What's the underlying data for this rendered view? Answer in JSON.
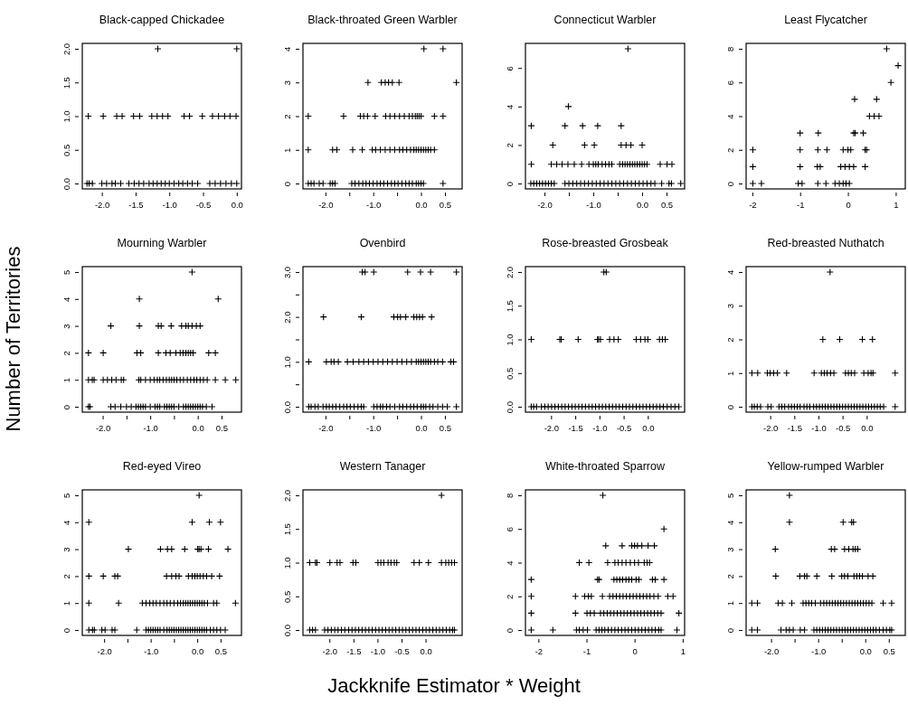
{
  "chart_data": [
    {
      "type": "scatter",
      "title": "Black-capped Chickadee",
      "marker": "cross",
      "color": "#000000",
      "xlim": [
        -2.29,
        0.07
      ],
      "ylim": [
        -0.08,
        2.08
      ],
      "xticks": [
        {
          "value": -2,
          "label": "-2.0"
        },
        {
          "value": -1.5,
          "label": "-1.5"
        },
        {
          "value": -1,
          "label": "-1.0"
        },
        {
          "value": -0.5,
          "label": "-0.5"
        },
        {
          "value": 0,
          "label": "0.0"
        }
      ],
      "yticks": [
        {
          "value": 0,
          "label": "0.0"
        },
        {
          "value": 0.5,
          "label": "0.5"
        },
        {
          "value": 1,
          "label": "1.0"
        },
        {
          "value": 1.5,
          "label": "1.5"
        },
        {
          "value": 2,
          "label": "2.0"
        }
      ],
      "x": [
        -1.17,
        0.0,
        -2.2,
        -1.98,
        -1.78,
        -1.7,
        -1.53,
        -1.44,
        -1.26,
        -1.18,
        -1.1,
        -1.02,
        -0.78,
        -0.7,
        -0.51,
        -0.36,
        -0.27,
        -0.18,
        -0.1,
        -0.01,
        -2.22,
        -2.19,
        -2.14,
        -2.0,
        -1.93,
        -1.85,
        -1.8,
        -1.72,
        -1.6,
        -1.52,
        -1.45,
        -1.38,
        -1.3,
        -1.24,
        -1.18,
        -1.12,
        -1.06,
        -1.0,
        -0.93,
        -0.86,
        -0.8,
        -0.73,
        -0.66,
        -0.58,
        -0.4,
        -0.32,
        -0.24,
        -0.16,
        -0.08,
        0.0
      ],
      "values": [
        2,
        2,
        1,
        1,
        1,
        1,
        1,
        1,
        1,
        1,
        1,
        1,
        1,
        1,
        1,
        1,
        1,
        1,
        1,
        1,
        0,
        0,
        0,
        0,
        0,
        0,
        0,
        0,
        0,
        0,
        0,
        0,
        0,
        0,
        0,
        0,
        0,
        0,
        0,
        0,
        0,
        0,
        0,
        0,
        0,
        0,
        0,
        0,
        0,
        0
      ]
    },
    {
      "type": "scatter",
      "title": "Black-throated Green Warbler",
      "marker": "cross",
      "color": "#000000",
      "xlim": [
        -2.47,
        0.86
      ],
      "ylim": [
        -0.16,
        4.16
      ],
      "xticks": [
        {
          "value": -2,
          "label": "-2.0"
        },
        {
          "value": -1.5,
          "label": null
        },
        {
          "value": -1,
          "label": "-1.0"
        },
        {
          "value": -0.5,
          "label": null
        },
        {
          "value": 0,
          "label": "0.0"
        },
        {
          "value": 0.5,
          "label": "0.5"
        }
      ],
      "yticks": [
        0,
        1,
        2,
        3,
        4
      ],
      "x": [
        0.06,
        0.46,
        -1.11,
        -0.83,
        -0.75,
        -0.68,
        -0.6,
        -0.46,
        0.74,
        -2.36,
        -1.62,
        -1.27,
        -1.2,
        -1.12,
        -0.96,
        -0.74,
        -0.65,
        -0.55,
        -0.45,
        -0.35,
        -0.25,
        -0.18,
        -0.12,
        -0.08,
        -0.04,
        0.0,
        0.28,
        0.46,
        -2.36,
        -1.85,
        -1.76,
        -1.43,
        -1.23,
        -1.02,
        -0.95,
        -0.85,
        -0.75,
        -0.65,
        -0.55,
        -0.45,
        -0.38,
        -0.3,
        -0.22,
        -0.15,
        -0.1,
        -0.05,
        0.0,
        0.05,
        0.1,
        0.15,
        0.2,
        0.28,
        -2.36,
        -2.3,
        -2.24,
        -2.13,
        -2.05,
        -1.9,
        -1.85,
        -1.8,
        -1.45,
        -1.38,
        -1.3,
        -1.22,
        -1.15,
        -1.08,
        -1.0,
        -0.92,
        -0.85,
        -0.78,
        -0.7,
        -0.62,
        -0.55,
        -0.48,
        -0.4,
        -0.32,
        -0.25,
        -0.18,
        -0.1,
        -0.05,
        0.0,
        0.05,
        0.46
      ],
      "values": [
        4,
        4,
        3,
        3,
        3,
        3,
        3,
        3,
        3,
        2,
        2,
        2,
        2,
        2,
        2,
        2,
        2,
        2,
        2,
        2,
        2,
        2,
        2,
        2,
        2,
        2,
        2,
        2,
        1,
        1,
        1,
        1,
        1,
        1,
        1,
        1,
        1,
        1,
        1,
        1,
        1,
        1,
        1,
        1,
        1,
        1,
        1,
        1,
        1,
        1,
        1,
        1,
        0,
        0,
        0,
        0,
        0,
        0,
        0,
        0,
        0,
        0,
        0,
        0,
        0,
        0,
        0,
        0,
        0,
        0,
        0,
        0,
        0,
        0,
        0,
        0,
        0,
        0,
        0,
        0,
        0,
        0,
        0
      ]
    },
    {
      "type": "scatter",
      "title": "Connecticut Warbler",
      "marker": "cross",
      "color": "#000000",
      "xlim": [
        -2.39,
        0.87
      ],
      "ylim": [
        -0.28,
        7.28
      ],
      "xticks": [
        {
          "value": -2,
          "label": "-2.0"
        },
        {
          "value": -1.5,
          "label": null
        },
        {
          "value": -1,
          "label": "-1.0"
        },
        {
          "value": -0.5,
          "label": null
        },
        {
          "value": 0,
          "label": "0.0"
        },
        {
          "value": 0.5,
          "label": "0.5"
        }
      ],
      "yticks": [
        0,
        2,
        4,
        6
      ],
      "x": [
        -0.29,
        -1.51,
        -2.27,
        -1.58,
        -1.22,
        -0.91,
        -0.43,
        -1.83,
        -1.18,
        -0.98,
        -0.43,
        -0.33,
        -0.23,
        0.0,
        -2.27,
        -1.86,
        -1.75,
        -1.64,
        -1.52,
        -1.39,
        -1.24,
        -1.09,
        -1.0,
        -0.95,
        -0.9,
        -0.82,
        -0.75,
        -0.68,
        -0.62,
        -0.46,
        -0.4,
        -0.35,
        -0.3,
        -0.25,
        -0.2,
        -0.15,
        -0.1,
        -0.05,
        0.0,
        0.05,
        0.1,
        0.37,
        0.51,
        0.61,
        -2.28,
        -2.22,
        -2.16,
        -2.1,
        -2.04,
        -1.98,
        -1.92,
        -1.86,
        -1.8,
        -1.58,
        -1.5,
        -1.42,
        -1.34,
        -1.26,
        -1.18,
        -1.1,
        -1.02,
        -0.94,
        -0.86,
        -0.78,
        -0.7,
        -0.62,
        -0.54,
        -0.46,
        -0.38,
        -0.3,
        -0.22,
        -0.14,
        -0.06,
        0.02,
        0.1,
        0.18,
        0.26,
        0.4,
        0.55,
        0.6,
        0.79
      ],
      "values": [
        7,
        4,
        3,
        3,
        3,
        3,
        3,
        2,
        2,
        2,
        2,
        2,
        2,
        2,
        1,
        1,
        1,
        1,
        1,
        1,
        1,
        1,
        1,
        1,
        1,
        1,
        1,
        1,
        1,
        1,
        1,
        1,
        1,
        1,
        1,
        1,
        1,
        1,
        1,
        1,
        1,
        1,
        1,
        1,
        0,
        0,
        0,
        0,
        0,
        0,
        0,
        0,
        0,
        0,
        0,
        0,
        0,
        0,
        0,
        0,
        0,
        0,
        0,
        0,
        0,
        0,
        0,
        0,
        0,
        0,
        0,
        0,
        0,
        0,
        0,
        0,
        0,
        0,
        0,
        0,
        0
      ]
    },
    {
      "type": "scatter",
      "title": "Least Flycatcher",
      "marker": "cross",
      "color": "#000000",
      "xlim": [
        -2.13,
        1.2
      ],
      "ylim": [
        -0.32,
        8.32
      ],
      "xticks": [
        -2,
        -1,
        0,
        1
      ],
      "yticks": [
        0,
        2,
        4,
        6,
        8
      ],
      "x": [
        0.81,
        1.05,
        0.9,
        0.14,
        0.6,
        0.45,
        0.55,
        0.65,
        -1.0,
        -0.62,
        0.12,
        0.15,
        0.32,
        -1.99,
        -1.0,
        -0.63,
        -0.44,
        -0.1,
        0.0,
        0.06,
        0.36,
        0.39,
        -1.99,
        -1.0,
        -0.64,
        -0.58,
        -0.15,
        -0.06,
        0.03,
        0.12,
        0.36,
        -1.99,
        -1.81,
        -1.04,
        -0.96,
        -0.63,
        -0.46,
        -0.27,
        -0.18,
        -0.1,
        -0.04,
        0.03
      ],
      "values": [
        8,
        7,
        6,
        5,
        5,
        4,
        4,
        4,
        3,
        3,
        3,
        3,
        3,
        2,
        2,
        2,
        2,
        2,
        2,
        2,
        2,
        2,
        1,
        1,
        1,
        1,
        1,
        1,
        1,
        1,
        1,
        0,
        0,
        0,
        0,
        0,
        0,
        0,
        0,
        0,
        0,
        0
      ]
    },
    {
      "type": "scatter",
      "title": "Mourning Warbler",
      "ylabel": "Number of Territories",
      "marker": "cross",
      "color": "#000000",
      "xlim": [
        -2.43,
        0.92
      ],
      "ylim": [
        -0.2,
        5.2
      ],
      "xticks": [
        {
          "value": -2,
          "label": "-2.0"
        },
        {
          "value": -1.5,
          "label": null
        },
        {
          "value": -1,
          "label": "-1.0"
        },
        {
          "value": -0.5,
          "label": null
        },
        {
          "value": 0,
          "label": "0.0"
        },
        {
          "value": 0.5,
          "label": "0.5"
        }
      ],
      "yticks": [
        0,
        1,
        2,
        3,
        4,
        5
      ],
      "x": [
        -0.12,
        -1.23,
        0.43,
        -1.83,
        -1.23,
        -0.83,
        -0.77,
        -0.56,
        -0.34,
        -0.25,
        -0.2,
        -0.12,
        -0.03,
        0.05,
        -2.3,
        -1.99,
        -1.28,
        -1.2,
        -0.83,
        -0.67,
        -0.58,
        -0.46,
        -0.37,
        -0.31,
        -0.25,
        -0.2,
        -0.15,
        -0.1,
        0.23,
        0.37,
        -2.3,
        -2.22,
        -2.18,
        -1.99,
        -1.9,
        -1.81,
        -1.72,
        -1.61,
        -1.56,
        -1.24,
        -1.2,
        -1.1,
        -1.0,
        -0.92,
        -0.85,
        -0.8,
        -0.73,
        -0.66,
        -0.6,
        -0.55,
        -0.5,
        -0.44,
        -0.37,
        -0.3,
        -0.22,
        -0.15,
        -0.08,
        -0.02,
        0.05,
        0.12,
        0.2,
        0.37,
        0.58,
        0.8,
        -2.3,
        -2.27,
        -1.83,
        -1.74,
        -1.62,
        -1.5,
        -1.4,
        -1.3,
        -1.25,
        -1.2,
        -1.15,
        -1.1,
        -1.0,
        -0.9,
        -0.85,
        -0.8,
        -0.7,
        -0.65,
        -0.6,
        -0.55,
        -0.5,
        -0.4,
        -0.3,
        -0.25,
        -0.2,
        -0.15,
        -0.1,
        -0.05,
        0.0,
        0.05,
        0.1,
        0.18,
        0.3
      ],
      "values": [
        5,
        4,
        4,
        3,
        3,
        3,
        3,
        3,
        3,
        3,
        3,
        3,
        3,
        3,
        2,
        2,
        2,
        2,
        2,
        2,
        2,
        2,
        2,
        2,
        2,
        2,
        2,
        2,
        2,
        2,
        1,
        1,
        1,
        1,
        1,
        1,
        1,
        1,
        1,
        1,
        1,
        1,
        1,
        1,
        1,
        1,
        1,
        1,
        1,
        1,
        1,
        1,
        1,
        1,
        1,
        1,
        1,
        1,
        1,
        1,
        1,
        1,
        1,
        1,
        0,
        0,
        0,
        0,
        0,
        0,
        0,
        0,
        0,
        0,
        0,
        0,
        0,
        0,
        0,
        0,
        0,
        0,
        0,
        0,
        0,
        0,
        0,
        0,
        0,
        0,
        0,
        0,
        0,
        0,
        0,
        0,
        0
      ]
    },
    {
      "type": "scatter",
      "title": "Ovenbird",
      "marker": "cross",
      "color": "#000000",
      "xlim": [
        -2.47,
        0.86
      ],
      "ylim": [
        -0.12,
        3.12
      ],
      "xticks": [
        {
          "value": -2,
          "label": "-2.0"
        },
        {
          "value": -1.5,
          "label": null
        },
        {
          "value": -1,
          "label": "-1.0"
        },
        {
          "value": -0.5,
          "label": null
        },
        {
          "value": 0,
          "label": "0.0"
        },
        {
          "value": 0.5,
          "label": "0.5"
        }
      ],
      "yticks": [
        {
          "value": 0,
          "label": "0.0"
        },
        {
          "value": 0.5,
          "label": null
        },
        {
          "value": 1,
          "label": "1.0"
        },
        {
          "value": 1.5,
          "label": null
        },
        {
          "value": 2,
          "label": "2.0"
        },
        {
          "value": 2.5,
          "label": null
        },
        {
          "value": 3,
          "label": "3.0"
        }
      ],
      "x": [
        -1.23,
        -1.17,
        -0.99,
        -0.28,
        -0.01,
        0.2,
        0.74,
        -2.04,
        -1.25,
        -0.57,
        -0.49,
        -0.43,
        -0.32,
        -0.15,
        -0.09,
        -0.03,
        0.03,
        0.22,
        -2.35,
        -1.98,
        -1.88,
        -1.82,
        -1.73,
        -1.54,
        -1.42,
        -1.3,
        -1.2,
        -1.1,
        -1.0,
        -0.9,
        -0.8,
        -0.7,
        -0.6,
        -0.5,
        -0.4,
        -0.3,
        -0.2,
        -0.1,
        -0.05,
        0.0,
        0.05,
        0.1,
        0.15,
        0.2,
        0.28,
        0.35,
        0.45,
        0.62,
        0.68,
        -2.35,
        -2.3,
        -2.22,
        -2.15,
        -2.05,
        -1.98,
        -1.92,
        -1.85,
        -1.78,
        -1.7,
        -1.62,
        -1.55,
        -1.48,
        -1.4,
        -1.32,
        -1.25,
        -1.2,
        -0.99,
        -0.92,
        -0.85,
        -0.8,
        -0.72,
        -0.65,
        -0.55,
        -0.45,
        -0.38,
        -0.3,
        -0.22,
        -0.15,
        -0.08,
        0.0,
        0.05,
        0.1,
        0.18,
        0.25,
        0.35,
        0.45,
        0.55,
        0.74
      ],
      "values": [
        3,
        3,
        3,
        3,
        3,
        3,
        3,
        2,
        2,
        2,
        2,
        2,
        2,
        2,
        2,
        2,
        2,
        2,
        1,
        1,
        1,
        1,
        1,
        1,
        1,
        1,
        1,
        1,
        1,
        1,
        1,
        1,
        1,
        1,
        1,
        1,
        1,
        1,
        1,
        1,
        1,
        1,
        1,
        1,
        1,
        1,
        1,
        1,
        1,
        0,
        0,
        0,
        0,
        0,
        0,
        0,
        0,
        0,
        0,
        0,
        0,
        0,
        0,
        0,
        0,
        0,
        0,
        0,
        0,
        0,
        0,
        0,
        0,
        0,
        0,
        0,
        0,
        0,
        0,
        0,
        0,
        0,
        0,
        0,
        0,
        0,
        0,
        0
      ]
    },
    {
      "type": "scatter",
      "title": "Rose-breasted Grosbeak",
      "marker": "cross",
      "color": "#000000",
      "xlim": [
        -2.53,
        0.76
      ],
      "ylim": [
        -0.08,
        2.08
      ],
      "xticks": [
        {
          "value": -2,
          "label": "-2.0"
        },
        {
          "value": -1.5,
          "label": "-1.5"
        },
        {
          "value": -1,
          "label": "-1.0"
        },
        {
          "value": -0.5,
          "label": "-0.5"
        },
        {
          "value": 0,
          "label": "0.0"
        }
      ],
      "yticks": [
        {
          "value": 0,
          "label": "0.0"
        },
        {
          "value": 0.5,
          "label": "0.5"
        },
        {
          "value": 1,
          "label": "1.0"
        },
        {
          "value": 1.5,
          "label": "1.5"
        },
        {
          "value": 2,
          "label": "2.0"
        }
      ],
      "x": [
        -0.91,
        -0.86,
        -2.41,
        -1.82,
        -1.79,
        -1.44,
        -1.04,
        -1.02,
        -0.98,
        -0.79,
        -0.7,
        -0.61,
        -0.24,
        -0.15,
        -0.06,
        0.0,
        0.24,
        0.3,
        0.36,
        -2.41,
        -2.36,
        -2.3,
        -2.2,
        -2.13,
        -2.06,
        -1.99,
        -1.92,
        -1.85,
        -1.78,
        -1.71,
        -1.64,
        -1.57,
        -1.5,
        -1.43,
        -1.36,
        -1.29,
        -1.22,
        -1.15,
        -1.08,
        -1.01,
        -0.94,
        -0.87,
        -0.8,
        -0.73,
        -0.66,
        -0.59,
        -0.52,
        -0.45,
        -0.38,
        -0.31,
        -0.24,
        -0.17,
        -0.1,
        -0.03,
        0.04,
        0.11,
        0.18,
        0.25,
        0.32,
        0.4,
        0.48,
        0.56,
        0.64
      ],
      "values": [
        2,
        2,
        1,
        1,
        1,
        1,
        1,
        1,
        1,
        1,
        1,
        1,
        1,
        1,
        1,
        1,
        1,
        1,
        1,
        0,
        0,
        0,
        0,
        0,
        0,
        0,
        0,
        0,
        0,
        0,
        0,
        0,
        0,
        0,
        0,
        0,
        0,
        0,
        0,
        0,
        0,
        0,
        0,
        0,
        0,
        0,
        0,
        0,
        0,
        0,
        0,
        0,
        0,
        0,
        0,
        0,
        0,
        0,
        0,
        0,
        0,
        0,
        0
      ]
    },
    {
      "type": "scatter",
      "title": "Red-breasted Nuthatch",
      "marker": "cross",
      "color": "#000000",
      "xlim": [
        -2.5,
        0.8
      ],
      "ylim": [
        -0.16,
        4.16
      ],
      "xticks": [
        {
          "value": -2,
          "label": "-2.0"
        },
        {
          "value": -1.5,
          "label": "-1.5"
        },
        {
          "value": -1,
          "label": "-1.0"
        },
        {
          "value": -0.5,
          "label": "-0.5"
        },
        {
          "value": 0,
          "label": "0.0"
        }
      ],
      "yticks": [
        0,
        1,
        2,
        3,
        4
      ],
      "x": [
        -0.76,
        -0.91,
        -0.56,
        -0.09,
        0.12,
        -2.38,
        -2.26,
        -2.06,
        -2.0,
        -1.93,
        -1.85,
        -1.66,
        -1.09,
        -0.94,
        -0.88,
        -0.82,
        -0.75,
        -0.68,
        -0.44,
        -0.38,
        -0.32,
        -0.25,
        -0.06,
        0.03,
        0.09,
        0.13,
        0.59,
        -2.38,
        -2.33,
        -2.27,
        -2.2,
        -2.05,
        -1.98,
        -1.82,
        -1.76,
        -1.7,
        -1.62,
        -1.56,
        -1.5,
        -1.44,
        -1.38,
        -1.3,
        -1.24,
        -1.18,
        -1.1,
        -1.04,
        -0.98,
        -0.92,
        -0.86,
        -0.8,
        -0.74,
        -0.68,
        -0.62,
        -0.56,
        -0.5,
        -0.44,
        -0.38,
        -0.32,
        -0.26,
        -0.2,
        -0.14,
        -0.08,
        -0.02,
        0.04,
        0.1,
        0.16,
        0.22,
        0.28,
        0.35,
        0.59
      ],
      "values": [
        4,
        2,
        2,
        2,
        2,
        1,
        1,
        1,
        1,
        1,
        1,
        1,
        1,
        1,
        1,
        1,
        1,
        1,
        1,
        1,
        1,
        1,
        1,
        1,
        1,
        1,
        1,
        0,
        0,
        0,
        0,
        0,
        0,
        0,
        0,
        0,
        0,
        0,
        0,
        0,
        0,
        0,
        0,
        0,
        0,
        0,
        0,
        0,
        0,
        0,
        0,
        0,
        0,
        0,
        0,
        0,
        0,
        0,
        0,
        0,
        0,
        0,
        0,
        0,
        0,
        0,
        0,
        0,
        0,
        0
      ]
    },
    {
      "type": "scatter",
      "title": "Red-eyed Vireo",
      "marker": "cross",
      "color": "#000000",
      "xlim": [
        -2.47,
        0.95
      ],
      "ylim": [
        -0.2,
        5.2
      ],
      "xticks": [
        {
          "value": -2,
          "label": "-2.0"
        },
        {
          "value": -1.5,
          "label": null
        },
        {
          "value": -1,
          "label": "-1.0"
        },
        {
          "value": -0.5,
          "label": null
        },
        {
          "value": 0,
          "label": "0.0"
        },
        {
          "value": 0.5,
          "label": "0.5"
        }
      ],
      "yticks": [
        0,
        1,
        2,
        3,
        4,
        5
      ],
      "x": [
        0.04,
        -2.33,
        -0.11,
        0.26,
        0.5,
        -1.48,
        -0.79,
        -0.64,
        -0.55,
        -0.27,
        0.01,
        0.04,
        0.08,
        0.24,
        0.66,
        -2.33,
        -2.02,
        -1.77,
        -1.71,
        -0.66,
        -0.55,
        -0.46,
        -0.39,
        -0.19,
        -0.11,
        -0.05,
        0.0,
        0.06,
        0.13,
        0.2,
        0.31,
        0.48,
        -2.33,
        -1.69,
        -1.18,
        -1.1,
        -1.02,
        -0.95,
        -0.88,
        -0.8,
        -0.72,
        -0.65,
        -0.58,
        -0.5,
        -0.42,
        -0.36,
        -0.3,
        -0.25,
        -0.2,
        -0.15,
        -0.1,
        -0.05,
        0.0,
        0.05,
        0.1,
        0.15,
        0.22,
        0.35,
        0.42,
        0.82,
        -2.33,
        -2.25,
        -2.21,
        -2.05,
        -1.98,
        -1.83,
        -1.77,
        -1.3,
        -1.1,
        -1.05,
        -1.0,
        -0.95,
        -0.9,
        -0.85,
        -0.8,
        -0.72,
        -0.65,
        -0.6,
        -0.55,
        -0.5,
        -0.45,
        -0.4,
        -0.35,
        -0.3,
        -0.25,
        -0.2,
        -0.15,
        -0.1,
        -0.05,
        0.0,
        0.05,
        0.1,
        0.15,
        0.2,
        0.28,
        0.35,
        0.42,
        0.5,
        0.6
      ],
      "values": [
        5,
        4,
        4,
        4,
        4,
        3,
        3,
        3,
        3,
        3,
        3,
        3,
        3,
        3,
        3,
        2,
        2,
        2,
        2,
        2,
        2,
        2,
        2,
        2,
        2,
        2,
        2,
        2,
        2,
        2,
        2,
        2,
        1,
        1,
        1,
        1,
        1,
        1,
        1,
        1,
        1,
        1,
        1,
        1,
        1,
        1,
        1,
        1,
        1,
        1,
        1,
        1,
        1,
        1,
        1,
        1,
        1,
        1,
        1,
        1,
        0,
        0,
        0,
        0,
        0,
        0,
        0,
        0,
        0,
        0,
        0,
        0,
        0,
        0,
        0,
        0,
        0,
        0,
        0,
        0,
        0,
        0,
        0,
        0,
        0,
        0,
        0,
        0,
        0,
        0,
        0,
        0,
        0,
        0,
        0,
        0,
        0,
        0,
        0
      ]
    },
    {
      "type": "scatter",
      "title": "Western Tanager",
      "xlabel": "Jackknife Estimator * Weight",
      "marker": "cross",
      "color": "#000000",
      "xlim": [
        -2.55,
        0.76
      ],
      "ylim": [
        -0.08,
        2.08
      ],
      "xticks": [
        {
          "value": -2,
          "label": "-2.0"
        },
        {
          "value": -1.5,
          "label": "-1.5"
        },
        {
          "value": -1,
          "label": "-1.0"
        },
        {
          "value": -0.5,
          "label": "-0.5"
        },
        {
          "value": 0,
          "label": "0.0"
        }
      ],
      "yticks": [
        {
          "value": 0,
          "label": "0.0"
        },
        {
          "value": 0.5,
          "label": "0.5"
        },
        {
          "value": 1,
          "label": "1.0"
        },
        {
          "value": 1.5,
          "label": "1.5"
        },
        {
          "value": 2,
          "label": "2.0"
        }
      ],
      "x": [
        0.33,
        -2.41,
        -2.29,
        -2.26,
        -1.99,
        -1.84,
        -1.78,
        -1.51,
        -1.45,
        -0.99,
        -0.93,
        -0.87,
        -0.78,
        -0.72,
        -0.65,
        -0.6,
        -0.24,
        -0.13,
        0.06,
        0.33,
        0.42,
        0.48,
        0.54,
        0.6,
        -2.41,
        -2.35,
        -2.29,
        -2.1,
        -2.03,
        -1.96,
        -1.89,
        -1.82,
        -1.75,
        -1.68,
        -1.6,
        -1.53,
        -1.46,
        -1.39,
        -1.32,
        -1.25,
        -1.18,
        -1.11,
        -1.04,
        -0.97,
        -0.9,
        -0.83,
        -0.76,
        -0.69,
        -0.62,
        -0.55,
        -0.48,
        -0.41,
        -0.34,
        -0.27,
        -0.2,
        -0.13,
        -0.06,
        0.01,
        0.08,
        0.15,
        0.22,
        0.29,
        0.36,
        0.43,
        0.5,
        0.56,
        0.6
      ],
      "values": [
        2,
        1,
        1,
        1,
        1,
        1,
        1,
        1,
        1,
        1,
        1,
        1,
        1,
        1,
        1,
        1,
        1,
        1,
        1,
        1,
        1,
        1,
        1,
        1,
        0,
        0,
        0,
        0,
        0,
        0,
        0,
        0,
        0,
        0,
        0,
        0,
        0,
        0,
        0,
        0,
        0,
        0,
        0,
        0,
        0,
        0,
        0,
        0,
        0,
        0,
        0,
        0,
        0,
        0,
        0,
        0,
        0,
        0,
        0,
        0,
        0,
        0,
        0,
        0,
        0,
        0,
        0
      ]
    },
    {
      "type": "scatter",
      "title": "White-throated Sparrow",
      "marker": "cross",
      "color": "#000000",
      "xlim": [
        -2.27,
        1.04
      ],
      "ylim": [
        -0.32,
        8.32
      ],
      "xticks": [
        -2,
        -1,
        0,
        1
      ],
      "yticks": [
        0,
        2,
        4,
        6,
        8
      ],
      "x": [
        -0.66,
        0.61,
        -0.6,
        -0.26,
        -0.06,
        0.0,
        0.06,
        0.15,
        0.28,
        0.41,
        -1.15,
        -0.95,
        -0.56,
        -0.41,
        -0.34,
        -0.26,
        -0.18,
        -0.09,
        0.0,
        0.08,
        0.2,
        0.26,
        0.31,
        -2.15,
        -0.77,
        -0.74,
        -0.43,
        -0.37,
        -0.31,
        -0.25,
        -0.18,
        -0.12,
        -0.06,
        0.03,
        0.09,
        0.37,
        0.43,
        0.61,
        -2.15,
        -1.23,
        -1.04,
        -0.96,
        -0.9,
        -0.67,
        -0.52,
        -0.45,
        -0.38,
        -0.31,
        -0.24,
        -0.17,
        -0.1,
        -0.03,
        0.04,
        0.11,
        0.18,
        0.25,
        0.32,
        0.4,
        0.49,
        0.69,
        0.8,
        -2.15,
        -1.23,
        -0.99,
        -0.92,
        -0.84,
        -0.71,
        -0.64,
        -0.57,
        -0.5,
        -0.43,
        -0.36,
        -0.29,
        -0.22,
        -0.15,
        -0.08,
        -0.01,
        0.06,
        0.13,
        0.2,
        0.27,
        0.34,
        0.41,
        0.48,
        0.55,
        0.92,
        -2.15,
        -1.7,
        -1.21,
        -1.15,
        -1.07,
        -0.98,
        -0.8,
        -0.74,
        -0.68,
        -0.62,
        -0.55,
        -0.48,
        -0.41,
        -0.34,
        -0.27,
        -0.2,
        -0.13,
        -0.06,
        0.01,
        0.08,
        0.15,
        0.22,
        0.29,
        0.36,
        0.43,
        0.5,
        0.55,
        0.88
      ],
      "values": [
        8,
        6,
        5,
        5,
        5,
        5,
        5,
        5,
        5,
        5,
        4,
        4,
        4,
        4,
        4,
        4,
        4,
        4,
        4,
        4,
        4,
        4,
        4,
        3,
        3,
        3,
        3,
        3,
        3,
        3,
        3,
        3,
        3,
        3,
        3,
        3,
        3,
        3,
        2,
        2,
        2,
        2,
        2,
        2,
        2,
        2,
        2,
        2,
        2,
        2,
        2,
        2,
        2,
        2,
        2,
        2,
        2,
        2,
        2,
        2,
        2,
        1,
        1,
        1,
        1,
        1,
        1,
        1,
        1,
        1,
        1,
        1,
        1,
        1,
        1,
        1,
        1,
        1,
        1,
        1,
        1,
        1,
        1,
        1,
        1,
        1,
        0,
        0,
        0,
        0,
        0,
        0,
        0,
        0,
        0,
        0,
        0,
        0,
        0,
        0,
        0,
        0,
        0,
        0,
        0,
        0,
        0,
        0,
        0,
        0,
        0,
        0,
        0,
        0
      ]
    },
    {
      "type": "scatter",
      "title": "Yellow-rumped Warbler",
      "marker": "cross",
      "color": "#000000",
      "xlim": [
        -2.53,
        0.85
      ],
      "ylim": [
        -0.2,
        5.2
      ],
      "xticks": [
        {
          "value": -2,
          "label": "-2.0"
        },
        {
          "value": -1.5,
          "label": null
        },
        {
          "value": -1,
          "label": "-1.0"
        },
        {
          "value": -0.5,
          "label": null
        },
        {
          "value": 0,
          "label": "0.0"
        },
        {
          "value": 0.5,
          "label": "0.5"
        }
      ],
      "yticks": [
        0,
        1,
        2,
        3,
        4,
        5
      ],
      "x": [
        -1.61,
        -1.61,
        -0.47,
        -0.29,
        -0.25,
        -1.91,
        -0.72,
        -0.65,
        -0.44,
        -0.35,
        -0.26,
        -0.21,
        -0.16,
        -1.9,
        -1.39,
        -1.29,
        -1.24,
        -1.03,
        -0.71,
        -0.5,
        -0.44,
        -0.37,
        -0.24,
        -0.18,
        -0.12,
        -0.06,
        0.06,
        0.16,
        -2.41,
        -2.29,
        -1.85,
        -1.76,
        -1.56,
        -1.32,
        -1.26,
        -1.2,
        -1.14,
        -1.06,
        -0.95,
        -0.88,
        -0.82,
        -0.76,
        -0.7,
        -0.64,
        -0.58,
        -0.52,
        -0.46,
        -0.4,
        -0.34,
        -0.28,
        -0.22,
        -0.16,
        -0.1,
        -0.04,
        0.02,
        0.08,
        0.14,
        0.38,
        0.56,
        -2.41,
        -2.29,
        -1.79,
        -1.68,
        -1.61,
        -1.53,
        -1.38,
        -1.29,
        -1.09,
        -1.03,
        -0.97,
        -0.91,
        -0.85,
        -0.79,
        -0.73,
        -0.67,
        -0.61,
        -0.55,
        -0.49,
        -0.43,
        -0.37,
        -0.31,
        -0.25,
        -0.19,
        -0.13,
        -0.07,
        -0.01,
        0.05,
        0.11,
        0.17,
        0.23,
        0.3,
        0.38,
        0.45,
        0.52,
        0.56
      ],
      "values": [
        5,
        4,
        4,
        4,
        4,
        3,
        3,
        3,
        3,
        3,
        3,
        3,
        3,
        2,
        2,
        2,
        2,
        2,
        2,
        2,
        2,
        2,
        2,
        2,
        2,
        2,
        2,
        2,
        1,
        1,
        1,
        1,
        1,
        1,
        1,
        1,
        1,
        1,
        1,
        1,
        1,
        1,
        1,
        1,
        1,
        1,
        1,
        1,
        1,
        1,
        1,
        1,
        1,
        1,
        1,
        1,
        1,
        1,
        1,
        0,
        0,
        0,
        0,
        0,
        0,
        0,
        0,
        0,
        0,
        0,
        0,
        0,
        0,
        0,
        0,
        0,
        0,
        0,
        0,
        0,
        0,
        0,
        0,
        0,
        0,
        0,
        0,
        0,
        0,
        0,
        0,
        0,
        0,
        0,
        0
      ]
    }
  ]
}
